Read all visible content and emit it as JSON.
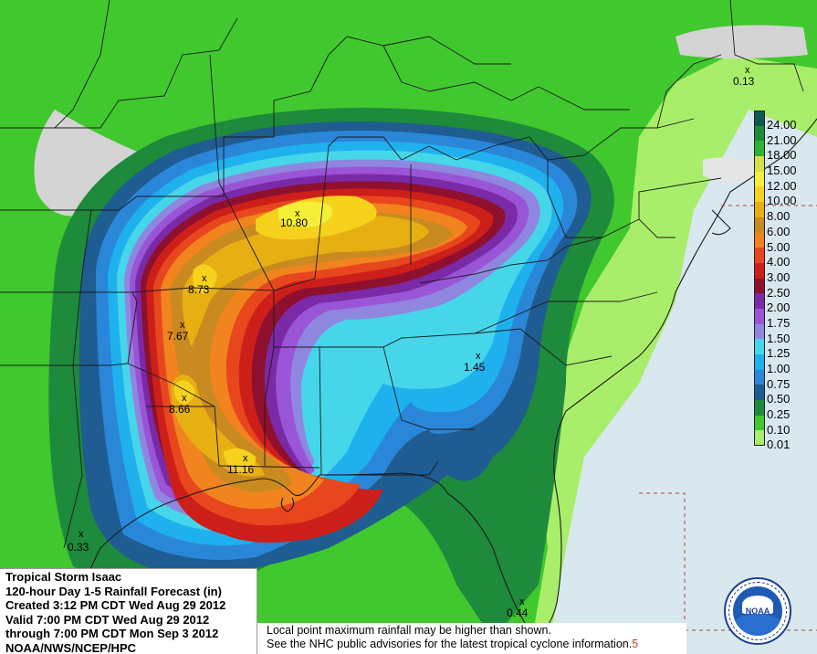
{
  "info": {
    "line1": "Tropical Storm Isaac",
    "line2": "120-hour Day 1-5 Rainfall Forecast (in)",
    "line3": "Created 3:12 PM CDT Wed Aug 29 2012",
    "line4": "Valid 7:00 PM CDT Wed Aug 29 2012",
    "line5": "through 7:00 PM CDT Mon Sep 3 2012",
    "line6": "NOAA/NWS/NCEP/HPC"
  },
  "note": {
    "line1": "Local point maximum rainfall may be higher than shown.",
    "line2": "See the NHC public advisories for the latest tropical cyclone information.",
    "suffix": "5"
  },
  "legend": {
    "unit": "in",
    "levels": [
      {
        "label": "24.00",
        "color": "#0e5a52"
      },
      {
        "label": "21.00",
        "color": "#1e8a3c"
      },
      {
        "label": "18.00",
        "color": "#2fb32f"
      },
      {
        "label": "15.00",
        "color": "#d6e04a"
      },
      {
        "label": "12.00",
        "color": "#f5ef3a"
      },
      {
        "label": "10.00",
        "color": "#f6d21c"
      },
      {
        "label": "8.00",
        "color": "#e7b012"
      },
      {
        "label": "6.00",
        "color": "#c98a20"
      },
      {
        "label": "5.00",
        "color": "#f1841e"
      },
      {
        "label": "4.00",
        "color": "#e8461e"
      },
      {
        "label": "3.00",
        "color": "#cc1f1a"
      },
      {
        "label": "2.50",
        "color": "#8e0f2e"
      },
      {
        "label": "2.00",
        "color": "#7a2aa6"
      },
      {
        "label": "1.75",
        "color": "#9a54d6"
      },
      {
        "label": "1.50",
        "color": "#8f86e0"
      },
      {
        "label": "1.25",
        "color": "#46d6ea"
      },
      {
        "label": "1.00",
        "color": "#1fb0ee"
      },
      {
        "label": "0.75",
        "color": "#2a86d8"
      },
      {
        "label": "0.50",
        "color": "#1e5c92"
      },
      {
        "label": "0.25",
        "color": "#1e8a3c"
      },
      {
        "label": "0.10",
        "color": "#40c82e"
      },
      {
        "label": "0.01",
        "color": "#a8ee6a"
      }
    ]
  },
  "maxima": [
    {
      "value": "10.80"
    },
    {
      "value": "8.73"
    },
    {
      "value": "7.67"
    },
    {
      "value": "8.66"
    },
    {
      "value": "11.16"
    },
    {
      "value": "1.45"
    },
    {
      "value": "0.13"
    },
    {
      "value": "0.33"
    },
    {
      "value": "0.44"
    }
  ],
  "logo": {
    "text": "NOAA"
  }
}
